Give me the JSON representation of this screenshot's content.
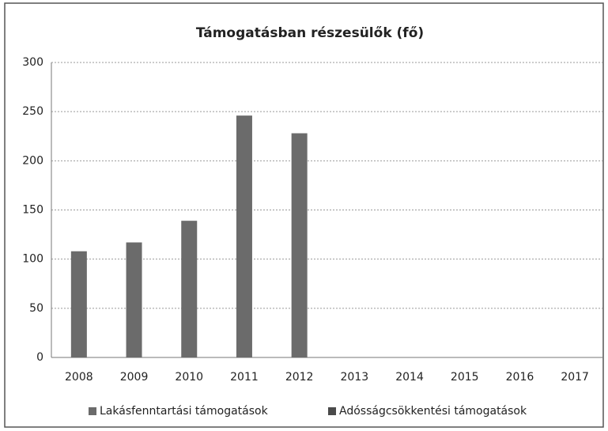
{
  "chart_data": {
    "type": "bar",
    "title": "Támogatásban részesülők (fő)",
    "categories": [
      "2008",
      "2009",
      "2010",
      "2011",
      "2012",
      "2013",
      "2014",
      "2015",
      "2016",
      "2017"
    ],
    "series": [
      {
        "name": "Lakásfenntartási támogatások",
        "color": "#6b6b6b",
        "values": [
          108,
          117,
          139,
          246,
          228,
          null,
          null,
          null,
          null,
          null
        ]
      },
      {
        "name": "Adósságcsökkentési támogatások",
        "color": "#4a4a4a",
        "values": [
          null,
          null,
          null,
          null,
          null,
          null,
          null,
          null,
          null,
          null
        ]
      }
    ],
    "ylim": [
      0,
      300
    ],
    "yticks": [
      0,
      50,
      100,
      150,
      200,
      250,
      300
    ],
    "grid": true,
    "legend": "bottom"
  }
}
